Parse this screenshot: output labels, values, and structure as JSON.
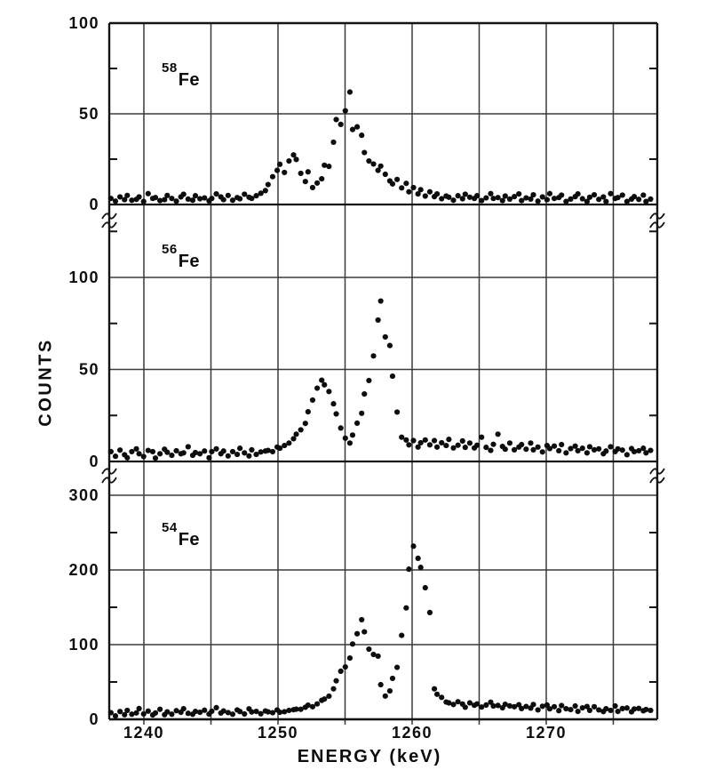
{
  "chart_data": {
    "type": "scatter",
    "title": "",
    "xlabel": "ENERGY (keV)",
    "ylabel": "COUNTS",
    "marker": "filled-circle",
    "grid": true,
    "colors": {
      "ink": "#0d0d0d",
      "paper": "#ffffff",
      "gridline": "#3a3a3a"
    },
    "x_axis": {
      "min": 1237.4,
      "max": 1278.3,
      "major_tick_labels": [
        "1240",
        "1250",
        "1260",
        "1270"
      ],
      "major_tick_values": [
        1240,
        1250,
        1260,
        1270
      ],
      "gridlines_kev": [
        1240,
        1245,
        1250,
        1255,
        1260,
        1265,
        1270,
        1275
      ]
    },
    "axis_breaks_between_panels": true,
    "panels": [
      {
        "isotope_mass": "58",
        "isotope_symbol": "Fe",
        "ylim": [
          0,
          100
        ],
        "major_ticks": [
          0,
          50,
          100
        ],
        "minor_ticks": [
          25,
          75
        ],
        "hgrid": [
          50,
          100
        ],
        "peaks_note": "main peak ~62 counts at ~1255.3 keV; shoulder bump ~25 at ~1251",
        "series": {
          "e_start": 1237.6,
          "e_step": 0.3,
          "counts": [
            3,
            2,
            4,
            3,
            5,
            2,
            3,
            4,
            2,
            6,
            3,
            4,
            2,
            3,
            5,
            3,
            2,
            4,
            6,
            3,
            2,
            5,
            3,
            4,
            2,
            3,
            6,
            4,
            3,
            5,
            2,
            4,
            3,
            6,
            4,
            3,
            5,
            6,
            8,
            11,
            15,
            19,
            22,
            18,
            24,
            27,
            25,
            17,
            13,
            18,
            9,
            12,
            14,
            22,
            21,
            34,
            47,
            44,
            52,
            62,
            41,
            43,
            38,
            29,
            24,
            22,
            19,
            21,
            17,
            13,
            11,
            14,
            9,
            12,
            7,
            9,
            6,
            8,
            5,
            7,
            4,
            6,
            3,
            5,
            4,
            2,
            5,
            3,
            6,
            4,
            3,
            5,
            2,
            4,
            6,
            3,
            4,
            2,
            5,
            3,
            4,
            6,
            2,
            4,
            3,
            5,
            2,
            4,
            3,
            6,
            3,
            4,
            5,
            2,
            3,
            4,
            6,
            3,
            2,
            4,
            5,
            3,
            4,
            2,
            6,
            3,
            4,
            5,
            2,
            3,
            4,
            3,
            5,
            2,
            3
          ]
        }
      },
      {
        "isotope_mass": "56",
        "isotope_symbol": "Fe",
        "ylim": [
          0,
          100
        ],
        "major_ticks": [
          0,
          50,
          100
        ],
        "minor_ticks": [
          25,
          75,
          125
        ],
        "hgrid": [
          50,
          100
        ],
        "peaks_note": "peaks ~44 counts at ~1253.2 keV and ~87 counts at ~1257.7 keV",
        "series": {
          "e_start": 1237.6,
          "e_step": 0.3,
          "counts": [
            5,
            3,
            6,
            4,
            2,
            5,
            7,
            4,
            3,
            6,
            5,
            2,
            4,
            7,
            5,
            3,
            6,
            4,
            5,
            8,
            3,
            5,
            4,
            6,
            2,
            5,
            7,
            4,
            6,
            3,
            5,
            4,
            7,
            5,
            3,
            6,
            4,
            5,
            6,
            6,
            5,
            8,
            7,
            9,
            10,
            12,
            15,
            17,
            21,
            27,
            33,
            40,
            44,
            42,
            38,
            31,
            26,
            18,
            13,
            10,
            14,
            21,
            26,
            37,
            44,
            57,
            77,
            87,
            68,
            63,
            46,
            27,
            13,
            12,
            9,
            11,
            8,
            10,
            12,
            9,
            11,
            8,
            10,
            9,
            12,
            7,
            9,
            11,
            8,
            10,
            7,
            9,
            13,
            8,
            6,
            9,
            15,
            8,
            7,
            10,
            6,
            8,
            9,
            7,
            10,
            6,
            8,
            5,
            9,
            7,
            8,
            6,
            9,
            5,
            7,
            8,
            6,
            7,
            5,
            8,
            6,
            7,
            4,
            6,
            8,
            5,
            7,
            6,
            4,
            7,
            5,
            6,
            7,
            5,
            6
          ]
        }
      },
      {
        "isotope_mass": "54",
        "isotope_symbol": "Fe",
        "ylim": [
          0,
          300
        ],
        "major_ticks": [
          0,
          100,
          200,
          300
        ],
        "minor_ticks": [
          50,
          150,
          250
        ],
        "hgrid": [
          100,
          200,
          300
        ],
        "peaks_note": "peaks ~133 counts at ~1256.2 keV and ~231 counts at ~1260.1 keV",
        "series": {
          "e_start": 1237.6,
          "e_step": 0.3,
          "counts": [
            8,
            5,
            10,
            7,
            12,
            6,
            9,
            14,
            8,
            11,
            5,
            9,
            13,
            7,
            10,
            6,
            12,
            9,
            15,
            8,
            6,
            11,
            9,
            13,
            7,
            10,
            16,
            8,
            12,
            9,
            6,
            13,
            10,
            8,
            14,
            9,
            11,
            7,
            12,
            10,
            8,
            13,
            9,
            11,
            12,
            12,
            14,
            13,
            17,
            19,
            16,
            21,
            25,
            28,
            31,
            40,
            52,
            64,
            71,
            82,
            100,
            115,
            133,
            118,
            94,
            86,
            85,
            46,
            32,
            38,
            54,
            70,
            112,
            150,
            201,
            231,
            216,
            203,
            177,
            143,
            40,
            34,
            29,
            24,
            22,
            19,
            24,
            20,
            17,
            22,
            18,
            21,
            16,
            20,
            23,
            17,
            19,
            15,
            21,
            18,
            16,
            20,
            14,
            18,
            15,
            19,
            13,
            17,
            20,
            14,
            16,
            12,
            18,
            15,
            13,
            17,
            11,
            15,
            18,
            12,
            16,
            13,
            10,
            15,
            12,
            17,
            11,
            14,
            16,
            10,
            13,
            15,
            11,
            14,
            12
          ]
        }
      }
    ]
  }
}
